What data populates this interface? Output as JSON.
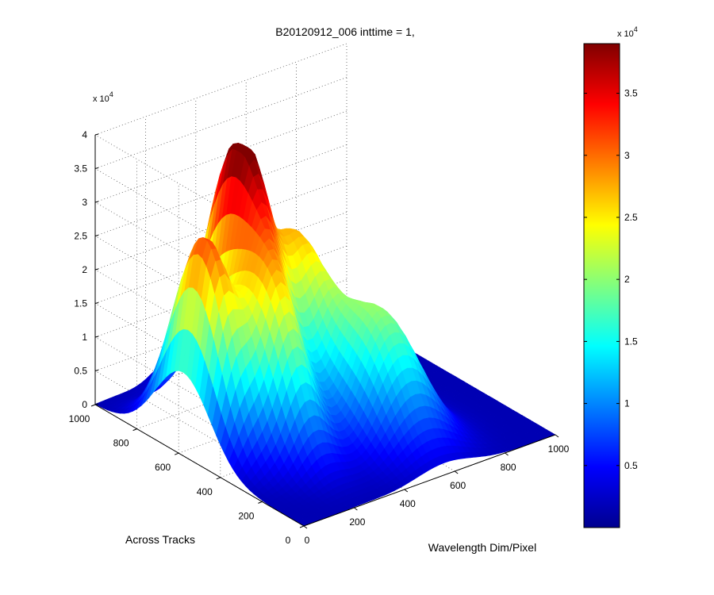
{
  "chart_data": {
    "type": "surface3d",
    "title": "B20120912_006 inttime = 1,",
    "xlabel": "Wavelength Dim/Pixel",
    "ylabel": "Across Tracks",
    "zlabel": "",
    "x_ticks": [
      "0",
      "200",
      "400",
      "600",
      "800",
      "1000"
    ],
    "y_ticks": [
      "0",
      "200",
      "400",
      "600",
      "800",
      "1000"
    ],
    "z_ticks": [
      "0",
      "0.5",
      "1",
      "1.5",
      "2",
      "2.5",
      "3",
      "3.5",
      "4"
    ],
    "z_exponent_base": "x 10",
    "z_exponent_power": "4",
    "xlim": [
      0,
      1000
    ],
    "ylim": [
      0,
      1000
    ],
    "zlim": [
      0,
      40000
    ],
    "grid": true,
    "colormap": "jet",
    "colorbar": {
      "range": [
        0,
        39000
      ],
      "ticks": [
        "0.5",
        "1",
        "1.5",
        "2",
        "2.5",
        "3",
        "3.5"
      ],
      "exponent_base": "x 10",
      "exponent_power": "4"
    },
    "peaks": [
      {
        "wavelength": 80,
        "track": 580,
        "height": 30000,
        "sigma_wavelength": 60,
        "sigma_track": 130
      },
      {
        "wavelength": 300,
        "track": 680,
        "height": 38000,
        "sigma_wavelength": 70,
        "sigma_track": 140
      },
      {
        "wavelength": 480,
        "track": 620,
        "height": 24000,
        "sigma_wavelength": 80,
        "sigma_track": 140
      },
      {
        "wavelength": 230,
        "track": 420,
        "height": 22000,
        "sigma_wavelength": 70,
        "sigma_track": 130
      },
      {
        "wavelength": 560,
        "track": 300,
        "height": 18000,
        "sigma_wavelength": 110,
        "sigma_track": 140
      }
    ]
  }
}
